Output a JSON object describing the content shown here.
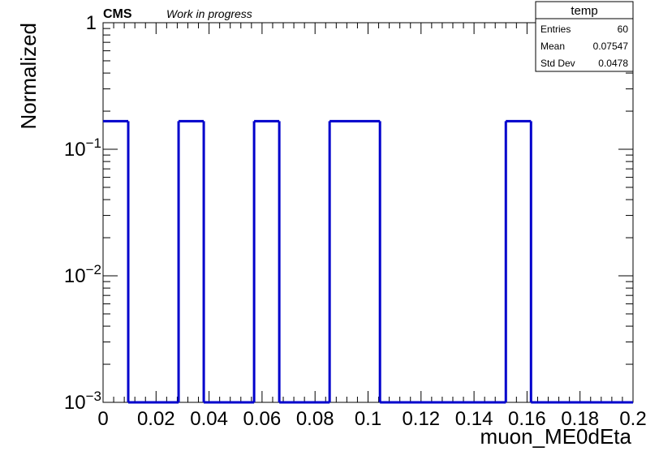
{
  "header": {
    "experiment": "CMS",
    "status": "Work in progress"
  },
  "stats_box": {
    "title": "temp",
    "rows": [
      {
        "label": "Entries",
        "value": "60"
      },
      {
        "label": "Mean",
        "value": "0.07547"
      },
      {
        "label": "Std Dev",
        "value": "0.0478"
      }
    ]
  },
  "chart_data": {
    "type": "histogram",
    "xlabel": "muon_ME0dEta",
    "ylabel": "Normalized",
    "xlim": [
      0,
      0.2
    ],
    "ylim": [
      0.001,
      1
    ],
    "yscale": "log",
    "line_color": "#0000cc",
    "x_ticks": [
      "0",
      "0.02",
      "0.04",
      "0.06",
      "0.08",
      "0.1",
      "0.12",
      "0.14",
      "0.16",
      "0.18",
      "0.2"
    ],
    "y_ticks": [
      {
        "value": 1,
        "base": "1",
        "exp": ""
      },
      {
        "value": 0.1,
        "base": "10",
        "exp": "−1"
      },
      {
        "value": 0.01,
        "base": "10",
        "exp": "−2"
      },
      {
        "value": 0.001,
        "base": "10",
        "exp": "−3"
      }
    ],
    "bins": [
      {
        "low": 0.0,
        "high": 0.0095,
        "value": 0.1667
      },
      {
        "low": 0.0095,
        "high": 0.0285,
        "value": 0.001
      },
      {
        "low": 0.0285,
        "high": 0.038,
        "value": 0.1667
      },
      {
        "low": 0.038,
        "high": 0.057,
        "value": 0.001
      },
      {
        "low": 0.057,
        "high": 0.0665,
        "value": 0.1667
      },
      {
        "low": 0.0665,
        "high": 0.0855,
        "value": 0.001
      },
      {
        "low": 0.0855,
        "high": 0.1045,
        "value": 0.1667
      },
      {
        "low": 0.1045,
        "high": 0.152,
        "value": 0.001
      },
      {
        "low": 0.152,
        "high": 0.1615,
        "value": 0.1667
      },
      {
        "low": 0.1615,
        "high": 0.2,
        "value": 0.001
      }
    ]
  }
}
